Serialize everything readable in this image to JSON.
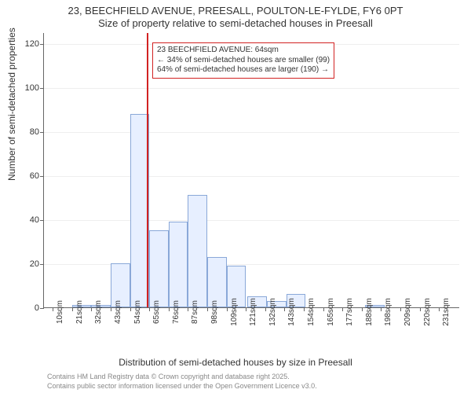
{
  "title_line1": "23, BEECHFIELD AVENUE, PREESALL, POULTON-LE-FYLDE, FY6 0PT",
  "title_line2": "Size of property relative to semi-detached houses in Preesall",
  "y_axis_label": "Number of semi-detached properties",
  "x_axis_label": "Distribution of semi-detached houses by size in Preesall",
  "credit1": "Contains HM Land Registry data © Crown copyright and database right 2025.",
  "credit2": "Contains public sector information licensed under the Open Government Licence v3.0.",
  "chart": {
    "type": "histogram",
    "background_color": "#ffffff",
    "grid_color": "#eeeeee",
    "axis_color": "#666666",
    "bar_fill": "#e7efff",
    "bar_border": "#8aa8d8",
    "ref_line_color": "#d22222",
    "ref_line_x": 64,
    "callout_border": "#d22222",
    "callout_bg": "#ffffff",
    "callout_line1": "23 BEECHFIELD AVENUE: 64sqm",
    "callout_line2": "← 34% of semi-detached houses are smaller (99)",
    "callout_line3": "64% of semi-detached houses are larger (190) →",
    "ylim": [
      0,
      125
    ],
    "ytick_step": 20,
    "yticks": [
      0,
      20,
      40,
      60,
      80,
      100,
      120
    ],
    "xlim": [
      5,
      242
    ],
    "x_tick_start": 10,
    "x_tick_step": 11,
    "x_tick_suffix": "sqm",
    "x_tick_labels": [
      "10sqm",
      "21sqm",
      "32sqm",
      "43sqm",
      "54sqm",
      "65sqm",
      "76sqm",
      "87sqm",
      "98sqm",
      "109sqm",
      "121sqm",
      "132sqm",
      "143sqm",
      "154sqm",
      "165sqm",
      "177sqm",
      "188sqm",
      "198sqm",
      "209sqm",
      "220sqm",
      "231sqm"
    ],
    "bar_width_data": 11,
    "bars": [
      {
        "x": 15.5,
        "h": 0
      },
      {
        "x": 26.5,
        "h": 1
      },
      {
        "x": 37.5,
        "h": 1
      },
      {
        "x": 48.5,
        "h": 20
      },
      {
        "x": 59.5,
        "h": 88
      },
      {
        "x": 70.5,
        "h": 35
      },
      {
        "x": 81.5,
        "h": 39
      },
      {
        "x": 92.5,
        "h": 51
      },
      {
        "x": 103.5,
        "h": 23
      },
      {
        "x": 114.5,
        "h": 19
      },
      {
        "x": 126.5,
        "h": 5
      },
      {
        "x": 137.5,
        "h": 3
      },
      {
        "x": 148.5,
        "h": 6
      },
      {
        "x": 159.5,
        "h": 0
      },
      {
        "x": 170.5,
        "h": 0
      },
      {
        "x": 182.5,
        "h": 0
      },
      {
        "x": 193.5,
        "h": 1
      },
      {
        "x": 203.5,
        "h": 0
      },
      {
        "x": 214.5,
        "h": 0
      },
      {
        "x": 225.5,
        "h": 0
      },
      {
        "x": 236.5,
        "h": 0
      }
    ]
  }
}
